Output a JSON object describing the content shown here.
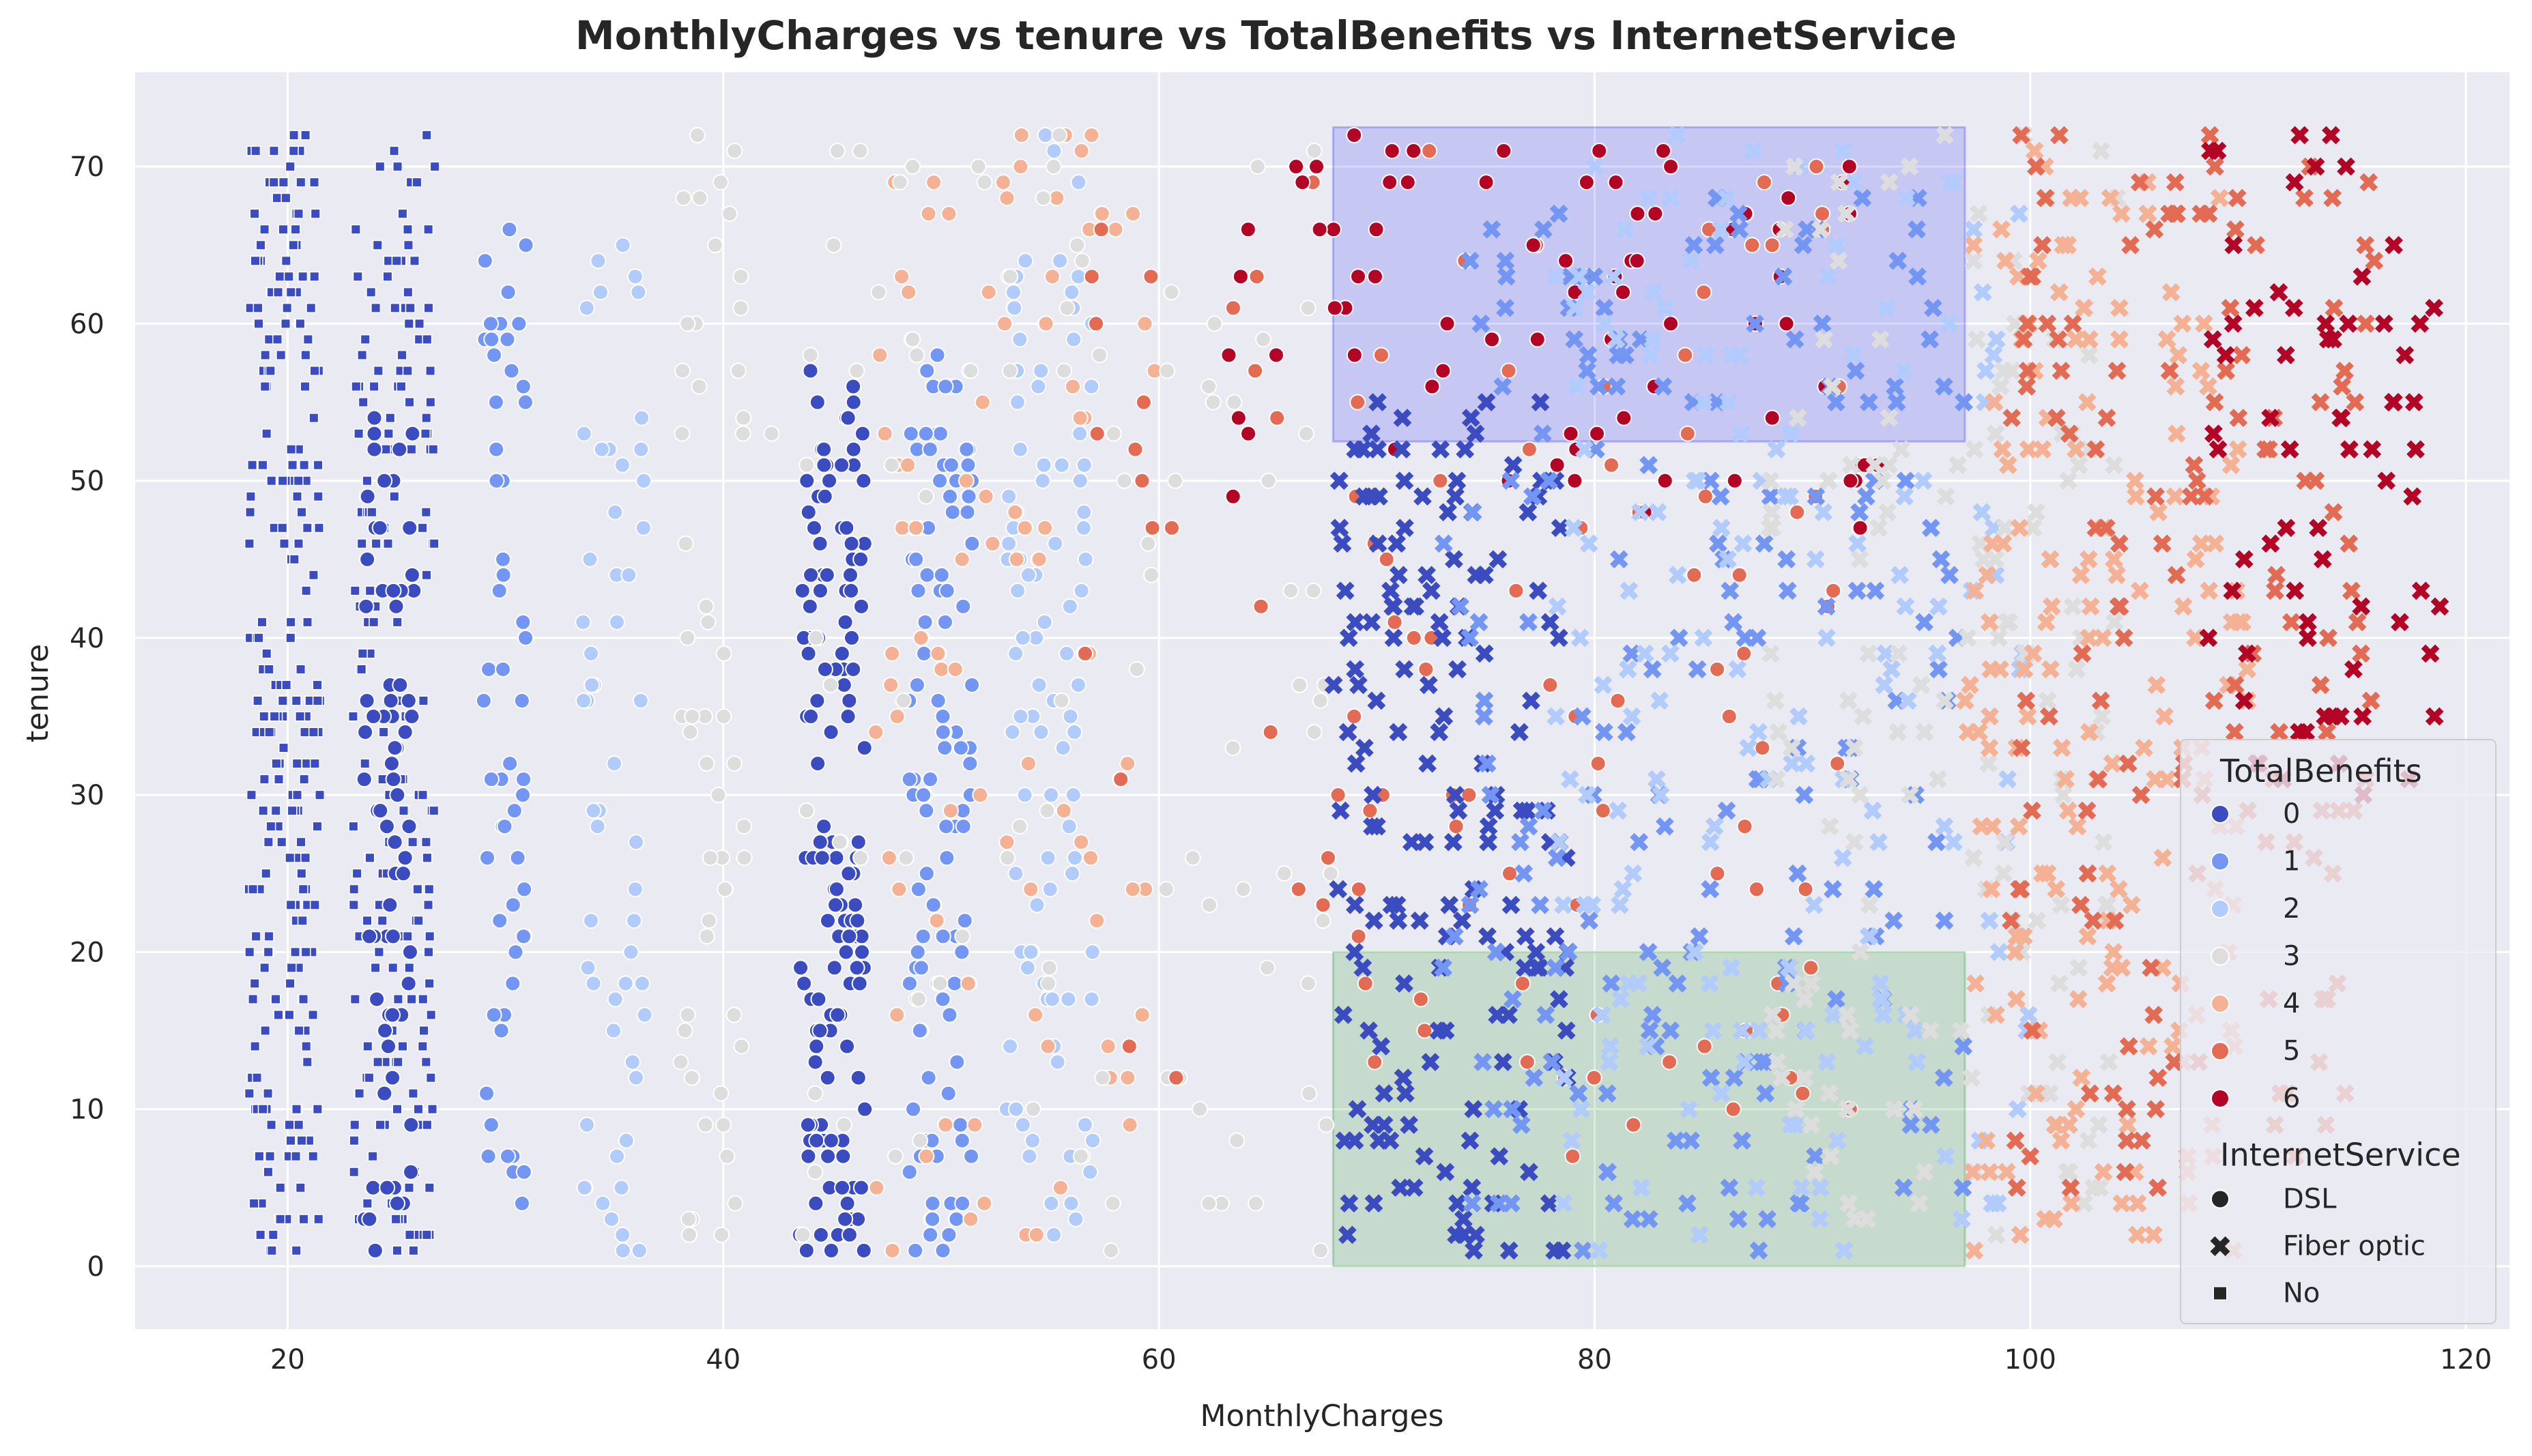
{
  "chart_data": {
    "type": "scatter",
    "title": "MonthlyCharges vs tenure vs TotalBenefits vs InternetService",
    "xlabel": "MonthlyCharges",
    "ylabel": "tenure",
    "xlim": [
      13,
      122
    ],
    "ylim": [
      -4,
      76
    ],
    "x_ticks": [
      20,
      40,
      60,
      80,
      100,
      120
    ],
    "y_ticks": [
      0,
      10,
      20,
      30,
      40,
      50,
      60,
      70
    ],
    "grid": true,
    "background": "#eaeaf2",
    "hue": {
      "title": "TotalBenefits",
      "levels": [
        "0",
        "1",
        "2",
        "3",
        "4",
        "5",
        "6"
      ],
      "colors": [
        "#3b4cc0",
        "#7396f5",
        "#b0cbfc",
        "#dddddd",
        "#f5b194",
        "#e36b54",
        "#b40426"
      ]
    },
    "style": {
      "title": "InternetService",
      "levels": [
        "DSL",
        "Fiber optic",
        "No"
      ],
      "markers": [
        "circle",
        "x",
        "square"
      ]
    },
    "legend_position": "lower-right",
    "highlights": [
      {
        "x_range": [
          68,
          97
        ],
        "y_range": [
          52.5,
          72.5
        ],
        "color": "#0000ff",
        "alpha": 0.15
      },
      {
        "x_range": [
          68,
          97
        ],
        "y_range": [
          0,
          20
        ],
        "color": "#008000",
        "alpha": 0.15
      }
    ],
    "series": [
      {
        "name": "No",
        "marker": "square",
        "benefits": 0,
        "x_range": [
          18.2,
          21.5
        ],
        "y_range": [
          1,
          72
        ],
        "n": 240
      },
      {
        "name": "No",
        "marker": "square",
        "benefits": 0,
        "x_range": [
          23.0,
          26.8
        ],
        "y_range": [
          1,
          72
        ],
        "n": 200
      },
      {
        "name": "DSL",
        "marker": "circle",
        "benefits": 0,
        "x_range": [
          23.5,
          25.8
        ],
        "y_range": [
          1,
          55
        ],
        "n": 70
      },
      {
        "name": "DSL",
        "marker": "circle",
        "benefits": 1,
        "x_range": [
          29,
          31
        ],
        "y_range": [
          1,
          69
        ],
        "n": 55
      },
      {
        "name": "DSL",
        "marker": "circle",
        "benefits": 2,
        "x_range": [
          33.5,
          36.5
        ],
        "y_range": [
          1,
          67
        ],
        "n": 55
      },
      {
        "name": "DSL",
        "marker": "circle",
        "benefits": 3,
        "x_range": [
          38,
          41
        ],
        "y_range": [
          1,
          72
        ],
        "n": 55
      },
      {
        "name": "DSL",
        "marker": "circle",
        "benefits": 0,
        "x_range": [
          43.5,
          46.5
        ],
        "y_range": [
          1,
          57
        ],
        "n": 140
      },
      {
        "name": "DSL",
        "marker": "circle",
        "benefits": 1,
        "x_range": [
          48.5,
          51.5
        ],
        "y_range": [
          1,
          60
        ],
        "n": 120
      },
      {
        "name": "DSL",
        "marker": "circle",
        "benefits": 2,
        "x_range": [
          53,
          57
        ],
        "y_range": [
          1,
          72
        ],
        "n": 100
      },
      {
        "name": "DSL",
        "marker": "circle",
        "benefits": 4,
        "x_range": [
          47,
          60
        ],
        "y_range": [
          1,
          72
        ],
        "n": 90
      },
      {
        "name": "DSL",
        "marker": "circle",
        "benefits": 3,
        "x_range": [
          42,
          68
        ],
        "y_range": [
          1,
          72
        ],
        "n": 100
      },
      {
        "name": "DSL",
        "marker": "circle",
        "benefits": 5,
        "x_range": [
          56,
          92
        ],
        "y_range": [
          6,
          72
        ],
        "n": 110
      },
      {
        "name": "DSL",
        "marker": "circle",
        "benefits": 6,
        "x_range": [
          63,
          93
        ],
        "y_range": [
          47,
          72
        ],
        "n": 80
      },
      {
        "name": "Fiber optic",
        "marker": "x",
        "benefits": 0,
        "x_range": [
          68,
          79
        ],
        "y_range": [
          1,
          55
        ],
        "n": 170
      },
      {
        "name": "Fiber optic",
        "marker": "x",
        "benefits": 1,
        "x_range": [
          73,
          97
        ],
        "y_range": [
          1,
          68
        ],
        "n": 200
      },
      {
        "name": "Fiber optic",
        "marker": "x",
        "benefits": 2,
        "x_range": [
          78,
          100
        ],
        "y_range": [
          1,
          72
        ],
        "n": 180
      },
      {
        "name": "Fiber optic",
        "marker": "x",
        "benefits": 3,
        "x_range": [
          88,
          104
        ],
        "y_range": [
          1,
          72
        ],
        "n": 160
      },
      {
        "name": "Fiber optic",
        "marker": "x",
        "benefits": 4,
        "x_range": [
          97,
          110
        ],
        "y_range": [
          1,
          72
        ],
        "n": 180
      },
      {
        "name": "Fiber optic",
        "marker": "x",
        "benefits": 5,
        "x_range": [
          99,
          116
        ],
        "y_range": [
          5,
          72
        ],
        "n": 150
      },
      {
        "name": "Fiber optic",
        "marker": "x",
        "benefits": 6,
        "x_range": [
          108,
          119
        ],
        "y_range": [
          30,
          72
        ],
        "n": 70
      }
    ]
  }
}
